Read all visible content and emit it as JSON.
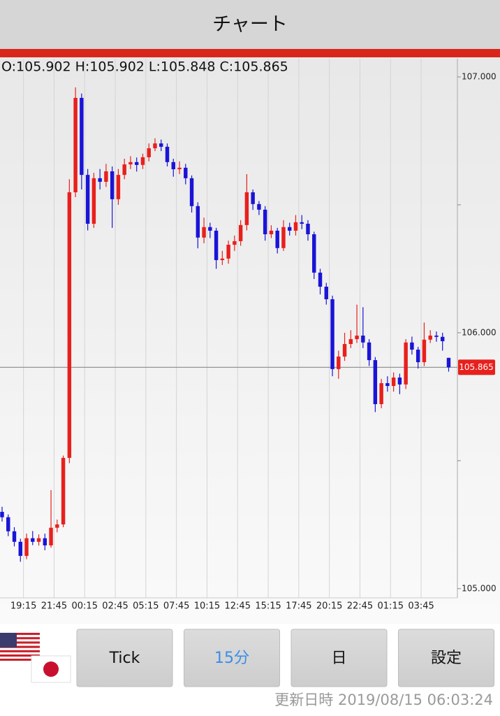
{
  "header": {
    "title": "チャート"
  },
  "chart_data": {
    "type": "candlestick",
    "ohlc_label": "O:105.902 H:105.902 L:105.848 C:105.865",
    "open": [
      105.3,
      105.279,
      105.224,
      105.183,
      105.128,
      105.197,
      105.183,
      105.197,
      105.169,
      105.238,
      105.251,
      105.511,
      106.549,
      106.918,
      106.617,
      106.426,
      106.604,
      106.59,
      106.631,
      106.522,
      106.617,
      106.658,
      106.667,
      106.656,
      106.686,
      106.721,
      106.74,
      106.727,
      106.667,
      106.639,
      106.645,
      106.604,
      106.495,
      106.372,
      106.413,
      106.399,
      106.284,
      106.29,
      106.344,
      106.358,
      106.421,
      106.549,
      106.503,
      106.481,
      106.385,
      106.399,
      106.331,
      106.413,
      106.399,
      106.432,
      106.426,
      106.385,
      106.235,
      106.18,
      106.131,
      105.858,
      105.907,
      105.956,
      105.975,
      105.989,
      105.962,
      105.893,
      105.721,
      105.803,
      105.792,
      105.825,
      105.798,
      105.962,
      105.934,
      105.885,
      105.973,
      105.989,
      105.984,
      105.902
    ],
    "high": [
      105.32,
      105.29,
      105.24,
      105.195,
      105.215,
      105.225,
      105.212,
      105.215,
      105.385,
      105.27,
      105.52,
      106.6,
      106.959,
      106.935,
      106.64,
      106.625,
      106.64,
      106.66,
      106.65,
      106.64,
      106.68,
      106.69,
      106.685,
      106.7,
      106.74,
      106.76,
      106.755,
      106.74,
      106.68,
      106.67,
      106.66,
      106.615,
      106.51,
      106.45,
      106.43,
      106.41,
      106.32,
      106.36,
      106.38,
      106.44,
      106.62,
      106.56,
      106.515,
      106.495,
      106.42,
      106.41,
      106.44,
      106.43,
      106.46,
      106.46,
      106.44,
      106.395,
      106.25,
      106.195,
      106.145,
      105.93,
      106.0,
      106.01,
      106.11,
      106.1,
      105.975,
      105.905,
      105.82,
      105.83,
      105.845,
      105.84,
      105.975,
      105.985,
      105.945,
      106.04,
      106.01,
      106.005,
      106.0,
      105.902
    ],
    "low": [
      105.262,
      105.205,
      105.165,
      105.105,
      105.115,
      105.17,
      105.168,
      105.15,
      105.16,
      105.22,
      105.24,
      105.49,
      106.53,
      106.56,
      106.4,
      106.41,
      106.56,
      106.57,
      106.41,
      106.5,
      106.6,
      106.64,
      106.63,
      106.64,
      106.67,
      106.71,
      106.71,
      106.65,
      106.61,
      106.62,
      106.58,
      106.47,
      106.33,
      106.35,
      106.37,
      106.25,
      106.265,
      106.27,
      106.32,
      106.34,
      106.4,
      106.48,
      106.46,
      106.36,
      106.37,
      106.31,
      106.32,
      106.38,
      106.38,
      106.405,
      106.36,
      106.21,
      106.15,
      106.11,
      105.83,
      105.82,
      105.89,
      105.94,
      105.96,
      105.94,
      105.87,
      105.69,
      105.705,
      105.77,
      105.77,
      105.76,
      105.78,
      105.915,
      105.86,
      105.87,
      105.96,
      105.965,
      105.93,
      105.848
    ],
    "close": [
      105.279,
      105.224,
      105.183,
      105.128,
      105.197,
      105.183,
      105.197,
      105.169,
      105.238,
      105.251,
      105.511,
      106.549,
      106.918,
      106.617,
      106.426,
      106.604,
      106.59,
      106.631,
      106.522,
      106.617,
      106.658,
      106.667,
      106.656,
      106.686,
      106.721,
      106.74,
      106.727,
      106.667,
      106.639,
      106.645,
      106.604,
      106.495,
      106.372,
      106.413,
      106.399,
      106.284,
      106.29,
      106.344,
      106.358,
      106.421,
      106.549,
      106.503,
      106.481,
      106.385,
      106.399,
      106.331,
      106.413,
      106.399,
      106.432,
      106.426,
      106.385,
      106.235,
      106.18,
      106.131,
      105.858,
      105.907,
      105.956,
      105.975,
      105.989,
      105.962,
      105.893,
      105.721,
      105.803,
      105.792,
      105.825,
      105.798,
      105.962,
      105.934,
      105.885,
      105.973,
      105.989,
      105.984,
      105.967,
      105.865
    ],
    "up_color": "#e8201c",
    "down_color": "#1a14d6",
    "xlim": [
      -0.34,
      74.43
    ],
    "xticks": [
      {
        "value": 3.5,
        "label": "19:15"
      },
      {
        "value": 8.5,
        "label": "21:45"
      },
      {
        "value": 13.5,
        "label": "00:15"
      },
      {
        "value": 18.5,
        "label": "02:45"
      },
      {
        "value": 23.5,
        "label": "05:15"
      },
      {
        "value": 28.5,
        "label": "07:45"
      },
      {
        "value": 33.5,
        "label": "10:15"
      },
      {
        "value": 38.5,
        "label": "12:45"
      },
      {
        "value": 43.5,
        "label": "15:15"
      },
      {
        "value": 48.5,
        "label": "17:45"
      },
      {
        "value": 53.5,
        "label": "20:15"
      },
      {
        "value": 58.5,
        "label": "22:45"
      },
      {
        "value": 63.5,
        "label": "01:15"
      },
      {
        "value": 68.5,
        "label": "03:45"
      }
    ],
    "ylim": [
      104.964,
      107.071
    ],
    "yticks": [
      {
        "value": 105,
        "label": "105.000"
      },
      {
        "value": 106,
        "label": "106.000"
      },
      {
        "value": 107,
        "label": "107.000"
      }
    ],
    "yminor": [
      105.5,
      106.5
    ],
    "grid": true
  },
  "buttons": [
    {
      "label": "Tick"
    },
    {
      "label": "15分",
      "selected": true
    },
    {
      "label": "日"
    },
    {
      "label": "設定"
    }
  ],
  "footer": {
    "updated": "更新日時 2019/08/15 06:03:24"
  }
}
